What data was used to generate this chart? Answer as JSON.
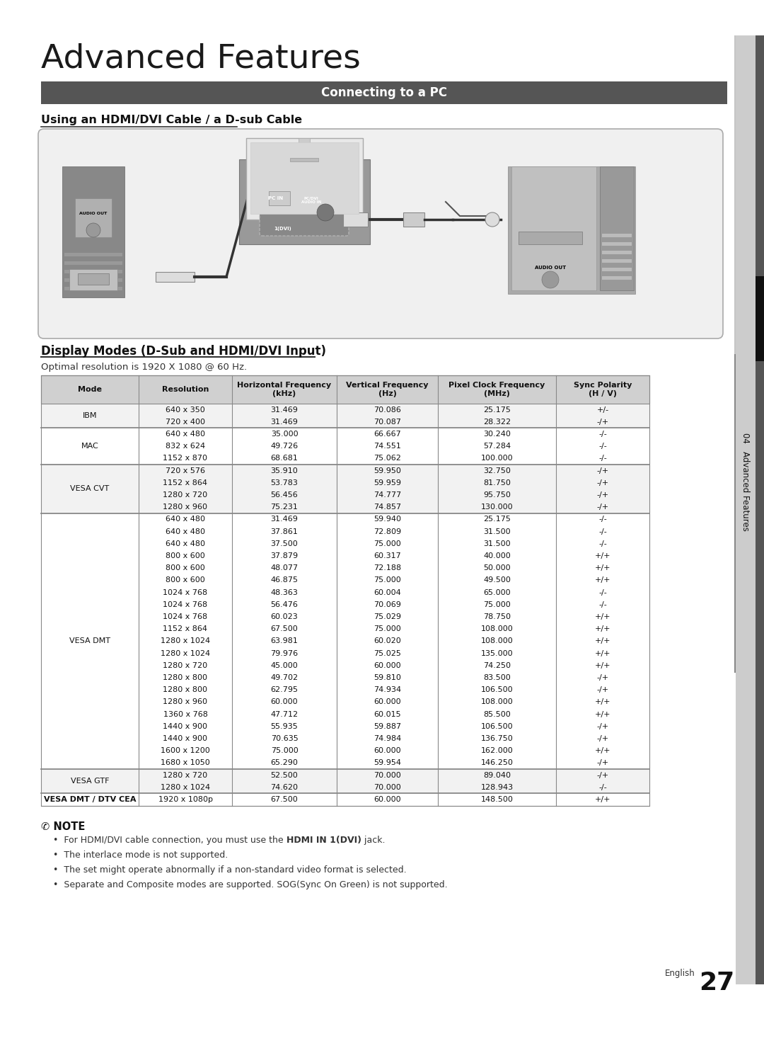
{
  "title": "Advanced Features",
  "section_header": "Connecting to a PC",
  "subtitle": "Using an HDMI/DVI Cable / a D-sub Cable",
  "display_modes_title": "Display Modes (D-Sub and HDMI/DVI Input)",
  "optimal_res": "Optimal resolution is 1920 X 1080 @ 60 Hz.",
  "table_headers": [
    "Mode",
    "Resolution",
    "Horizontal Frequency\n(kHz)",
    "Vertical Frequency\n(Hz)",
    "Pixel Clock Frequency\n(MHz)",
    "Sync Polarity\n(H / V)"
  ],
  "table_data": [
    [
      "IBM",
      "640 x 350",
      "31.469",
      "70.086",
      "25.175",
      "+/-"
    ],
    [
      "IBM",
      "720 x 400",
      "31.469",
      "70.087",
      "28.322",
      "-/+"
    ],
    [
      "MAC",
      "640 x 480",
      "35.000",
      "66.667",
      "30.240",
      "-/-"
    ],
    [
      "MAC",
      "832 x 624",
      "49.726",
      "74.551",
      "57.284",
      "-/-"
    ],
    [
      "MAC",
      "1152 x 870",
      "68.681",
      "75.062",
      "100.000",
      "-/-"
    ],
    [
      "VESA CVT",
      "720 x 576",
      "35.910",
      "59.950",
      "32.750",
      "-/+"
    ],
    [
      "VESA CVT",
      "1152 x 864",
      "53.783",
      "59.959",
      "81.750",
      "-/+"
    ],
    [
      "VESA CVT",
      "1280 x 720",
      "56.456",
      "74.777",
      "95.750",
      "-/+"
    ],
    [
      "VESA CVT",
      "1280 x 960",
      "75.231",
      "74.857",
      "130.000",
      "-/+"
    ],
    [
      "VESA DMT",
      "640 x 480",
      "31.469",
      "59.940",
      "25.175",
      "-/-"
    ],
    [
      "VESA DMT",
      "640 x 480",
      "37.861",
      "72.809",
      "31.500",
      "-/-"
    ],
    [
      "VESA DMT",
      "640 x 480",
      "37.500",
      "75.000",
      "31.500",
      "-/-"
    ],
    [
      "VESA DMT",
      "800 x 600",
      "37.879",
      "60.317",
      "40.000",
      "+/+"
    ],
    [
      "VESA DMT",
      "800 x 600",
      "48.077",
      "72.188",
      "50.000",
      "+/+"
    ],
    [
      "VESA DMT",
      "800 x 600",
      "46.875",
      "75.000",
      "49.500",
      "+/+"
    ],
    [
      "VESA DMT",
      "1024 x 768",
      "48.363",
      "60.004",
      "65.000",
      "-/-"
    ],
    [
      "VESA DMT",
      "1024 x 768",
      "56.476",
      "70.069",
      "75.000",
      "-/-"
    ],
    [
      "VESA DMT",
      "1024 x 768",
      "60.023",
      "75.029",
      "78.750",
      "+/+"
    ],
    [
      "VESA DMT",
      "1152 x 864",
      "67.500",
      "75.000",
      "108.000",
      "+/+"
    ],
    [
      "VESA DMT",
      "1280 x 1024",
      "63.981",
      "60.020",
      "108.000",
      "+/+"
    ],
    [
      "VESA DMT",
      "1280 x 1024",
      "79.976",
      "75.025",
      "135.000",
      "+/+"
    ],
    [
      "VESA DMT",
      "1280 x 720",
      "45.000",
      "60.000",
      "74.250",
      "+/+"
    ],
    [
      "VESA DMT",
      "1280 x 800",
      "49.702",
      "59.810",
      "83.500",
      "-/+"
    ],
    [
      "VESA DMT",
      "1280 x 800",
      "62.795",
      "74.934",
      "106.500",
      "-/+"
    ],
    [
      "VESA DMT",
      "1280 x 960",
      "60.000",
      "60.000",
      "108.000",
      "+/+"
    ],
    [
      "VESA DMT",
      "1360 x 768",
      "47.712",
      "60.015",
      "85.500",
      "+/+"
    ],
    [
      "VESA DMT",
      "1440 x 900",
      "55.935",
      "59.887",
      "106.500",
      "-/+"
    ],
    [
      "VESA DMT",
      "1440 x 900",
      "70.635",
      "74.984",
      "136.750",
      "-/+"
    ],
    [
      "VESA DMT",
      "1600 x 1200",
      "75.000",
      "60.000",
      "162.000",
      "+/+"
    ],
    [
      "VESA DMT",
      "1680 x 1050",
      "65.290",
      "59.954",
      "146.250",
      "-/+"
    ],
    [
      "VESA GTF",
      "1280 x 720",
      "52.500",
      "70.000",
      "89.040",
      "-/+"
    ],
    [
      "VESA GTF",
      "1280 x 1024",
      "74.620",
      "70.000",
      "128.943",
      "-/-"
    ],
    [
      "VESA DMT / DTV CEA",
      "1920 x 1080p",
      "67.500",
      "60.000",
      "148.500",
      "+/+"
    ]
  ],
  "notes": [
    "For HDMI/DVI cable connection, you must use the HDMI IN 1(DVI) jack.",
    "The interlace mode is not supported.",
    "The set might operate abnormally if a non-standard video format is selected.",
    "Separate and Composite modes are supported. SOG(Sync On Green) is not supported."
  ],
  "side_label": "04  Advanced Features",
  "page_number": "27",
  "header_bg": "#555555",
  "header_fg": "#ffffff",
  "side_tab_light": "#c8c8c8",
  "side_tab_dark": "#444444"
}
